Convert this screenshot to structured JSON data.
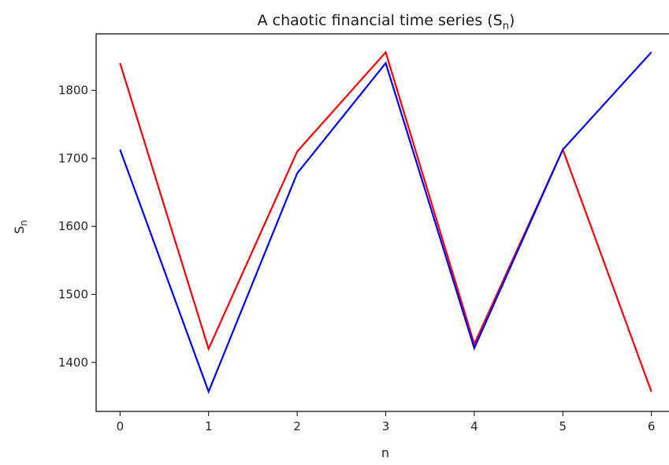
{
  "chart_data": {
    "type": "line",
    "title": "A chaotic financial time series (S",
    "title_sub": "n",
    "title_close": ")",
    "xlabel": "n",
    "ylabel": "S",
    "ylabel_sub": "n",
    "x": [
      0,
      1,
      2,
      3,
      4,
      5,
      6
    ],
    "xticks": [
      "0",
      "1",
      "2",
      "3",
      "4",
      "5",
      "6"
    ],
    "yticks": [
      1400,
      1500,
      1600,
      1700,
      1800
    ],
    "ytick_labels": [
      "1400",
      "1500",
      "1600",
      "1700",
      "1800"
    ],
    "xlim": [
      -0.27,
      6.27
    ],
    "ylim": [
      1328,
      1883
    ],
    "grid": false,
    "series": [
      {
        "color": "#ff0000",
        "values": [
          1840,
          1420,
          1710,
          1856,
          1427,
          1713,
          1357
        ]
      },
      {
        "color": "#0000ff",
        "values": [
          1713,
          1357,
          1678,
          1840,
          1421,
          1713,
          1856
        ]
      }
    ]
  }
}
